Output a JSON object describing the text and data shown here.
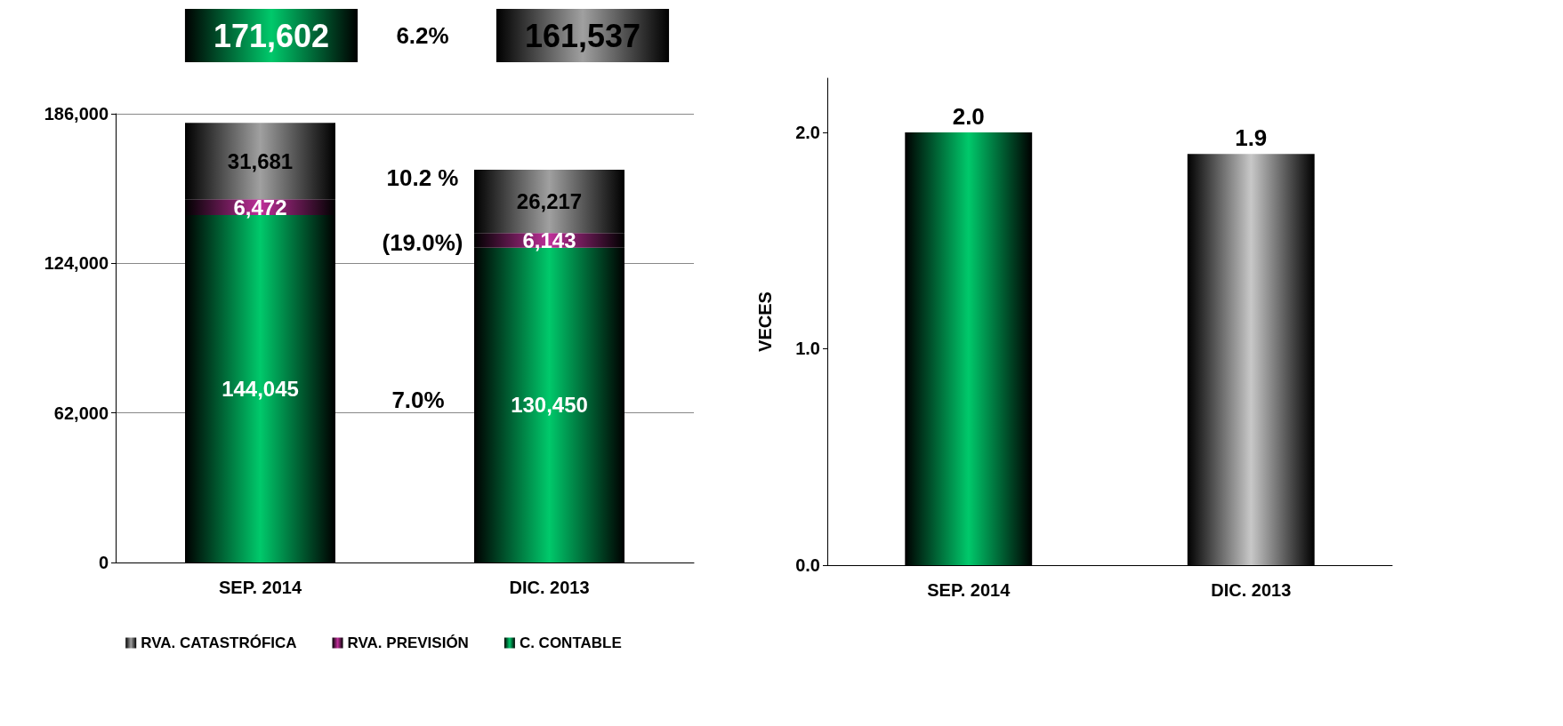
{
  "chart_data": [
    {
      "type": "bar",
      "stacked": true,
      "categories": [
        "SEP. 2014",
        "DIC. 2013"
      ],
      "series": [
        {
          "name": "C. CONTABLE",
          "color": "#00c96b",
          "values": [
            144045,
            130450
          ],
          "value_labels": [
            "144,045",
            "130,450"
          ]
        },
        {
          "name": "RVA. PREVISIÓN",
          "color": "#c0309a",
          "values": [
            6472,
            6143
          ],
          "value_labels": [
            "6,472",
            "6,143"
          ]
        },
        {
          "name": "RVA. CATASTRÓFICA",
          "color": "#a0a0a0",
          "values": [
            31681,
            26217
          ],
          "value_labels": [
            "31,681",
            "26,217"
          ]
        }
      ],
      "ylim": [
        0,
        186000
      ],
      "yticks": [
        {
          "value": 0,
          "label": "0"
        },
        {
          "value": 62000,
          "label": "62,000"
        },
        {
          "value": 124000,
          "label": "124,000"
        },
        {
          "value": 186000,
          "label": "186,000"
        }
      ],
      "grid": "y",
      "legend": "bottom",
      "annotations": [
        "171,602",
        "6.2%",
        "161,537",
        "10.2 %",
        "(19.0%)",
        "7.0%"
      ]
    },
    {
      "type": "bar",
      "categories": [
        "SEP. 2014",
        "DIC. 2013"
      ],
      "values": [
        2.0,
        1.9
      ],
      "colors": [
        "#00c96b",
        "#c8c8c8"
      ],
      "value_labels": [
        "2.0",
        "1.9"
      ],
      "ylabel": "VECES",
      "ylim": [
        0,
        2.25
      ],
      "yticks": [
        {
          "value": 0,
          "label": "0.0"
        },
        {
          "value": 1,
          "label": "1.0"
        },
        {
          "value": 2,
          "label": "2.0"
        }
      ],
      "grid": false
    }
  ]
}
